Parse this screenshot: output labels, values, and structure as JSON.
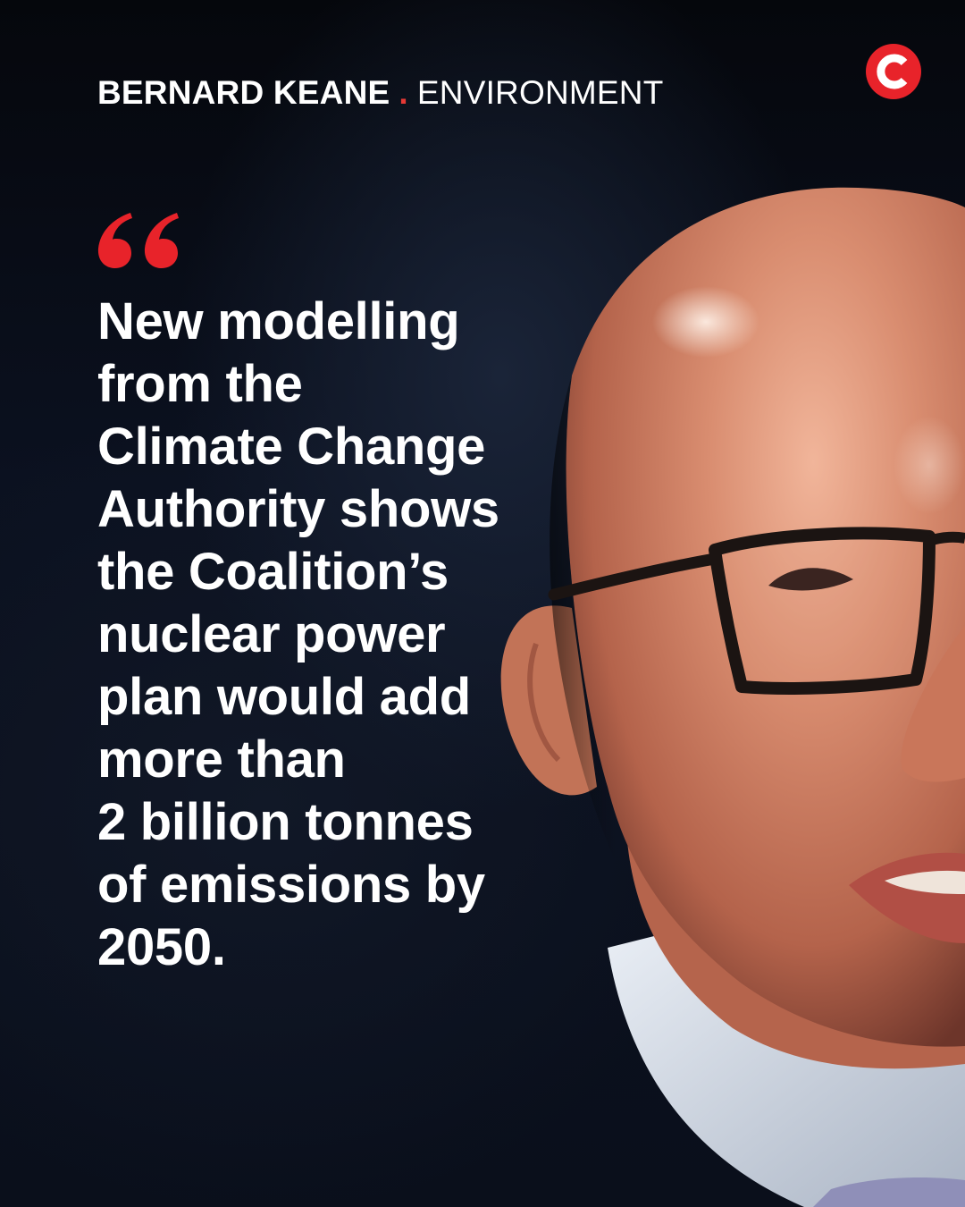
{
  "byline": {
    "author": "BERNARD KEANE",
    "separator": ".",
    "section": "ENVIRONMENT"
  },
  "logo": {
    "icon": "crikey-c-logo",
    "color": "#e8232a"
  },
  "quote": {
    "mark_icon": "open-quote-icon",
    "mark_color": "#e8232a",
    "text": "New modelling\nfrom the\nClimate Change\nAuthority shows\nthe Coalition’s\nnuclear power\nplan would add\nmore than\n2 billion tonnes\nof emissions by\n2050."
  },
  "photo": {
    "subject": "portrait-photo"
  },
  "colors": {
    "background": "#0b0f1a",
    "accent": "#e8232a",
    "text": "#ffffff"
  }
}
